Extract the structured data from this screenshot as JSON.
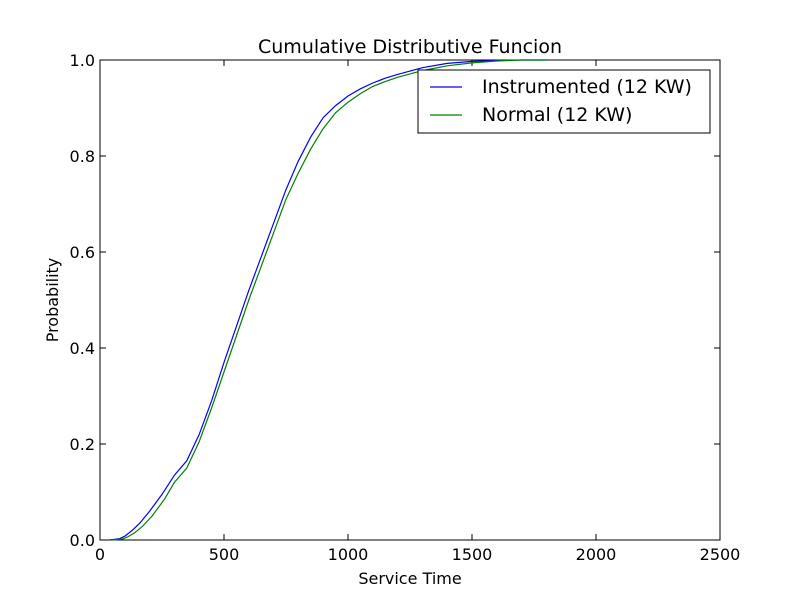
{
  "chart_data": {
    "type": "line",
    "title": "Cumulative Distributive Funcion",
    "xlabel": "Service Time",
    "ylabel": "Probability",
    "xlim": [
      0,
      2500
    ],
    "ylim": [
      0.0,
      1.0
    ],
    "xticks": [
      0,
      500,
      1000,
      1500,
      2000,
      2500
    ],
    "yticks": [
      0.0,
      0.2,
      0.4,
      0.6,
      0.8,
      1.0
    ],
    "xtick_labels": [
      "0",
      "500",
      "1000",
      "1500",
      "2000",
      "2500"
    ],
    "ytick_labels": [
      "0.0",
      "0.2",
      "0.4",
      "0.6",
      "0.8",
      "1.0"
    ],
    "grid": false,
    "legend_position": "top-right",
    "series": [
      {
        "name": "Instrumented (12 KW)",
        "color": "#0000ff",
        "x": [
          40,
          80,
          100,
          130,
          160,
          200,
          250,
          300,
          350,
          400,
          450,
          500,
          550,
          600,
          650,
          700,
          750,
          800,
          850,
          900,
          950,
          1000,
          1050,
          1100,
          1150,
          1200,
          1300,
          1400,
          1500,
          1600,
          1700,
          1800
        ],
        "y": [
          0.0,
          0.003,
          0.008,
          0.02,
          0.035,
          0.06,
          0.095,
          0.135,
          0.165,
          0.22,
          0.29,
          0.37,
          0.445,
          0.52,
          0.59,
          0.66,
          0.73,
          0.79,
          0.84,
          0.88,
          0.905,
          0.925,
          0.94,
          0.952,
          0.962,
          0.97,
          0.984,
          0.993,
          0.997,
          0.999,
          1.0,
          1.0
        ]
      },
      {
        "name": "Normal (12 KW)",
        "color": "#008000",
        "x": [
          50,
          90,
          110,
          140,
          170,
          210,
          260,
          300,
          350,
          400,
          450,
          500,
          550,
          600,
          650,
          700,
          750,
          800,
          850,
          900,
          950,
          1000,
          1050,
          1100,
          1150,
          1200,
          1300,
          1400,
          1500,
          1600,
          1700,
          1800
        ],
        "y": [
          0.0,
          0.002,
          0.006,
          0.015,
          0.028,
          0.05,
          0.085,
          0.12,
          0.15,
          0.205,
          0.275,
          0.35,
          0.425,
          0.5,
          0.57,
          0.64,
          0.71,
          0.765,
          0.815,
          0.857,
          0.89,
          0.912,
          0.93,
          0.945,
          0.955,
          0.964,
          0.978,
          0.988,
          0.994,
          0.998,
          1.0,
          1.0
        ]
      }
    ]
  }
}
